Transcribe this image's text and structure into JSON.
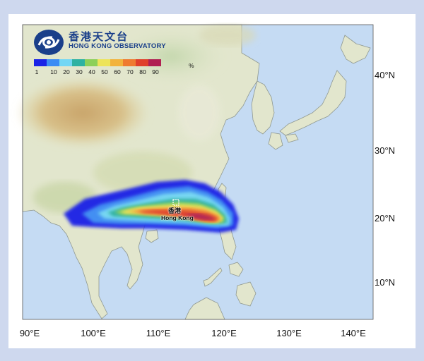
{
  "logo": {
    "name_cn": "香港天文台",
    "name_en": "HONG KONG OBSERVATORY",
    "emblem_icon": "hko-emblem-icon"
  },
  "legend": {
    "unit": "%",
    "colors": [
      "#1a23e6",
      "#3c8cf4",
      "#73d7f4",
      "#2eb2a2",
      "#8dd05a",
      "#ede45a",
      "#f2b33c",
      "#ef7b30",
      "#e0402a",
      "#b02052"
    ],
    "ticks": [
      "1",
      "10",
      "20",
      "30",
      "40",
      "50",
      "60",
      "70",
      "80",
      "90"
    ]
  },
  "axes": {
    "lat_labels": [
      "40°N",
      "30°N",
      "20°N",
      "10°N"
    ],
    "lat_values": [
      40,
      30,
      20,
      10
    ],
    "lon_labels": [
      "90°E",
      "100°E",
      "110°E",
      "120°E",
      "130°E",
      "140°E"
    ],
    "lon_values": [
      90,
      100,
      110,
      120,
      130,
      140
    ]
  },
  "location": {
    "name_cn": "香港",
    "name_en": "Hong Kong",
    "lat": 22.3,
    "lon": 114.2
  },
  "colors": {
    "ocean": "#c5dbf3",
    "land": "#e3e7cf",
    "frame_bg": "#ced8ee"
  }
}
